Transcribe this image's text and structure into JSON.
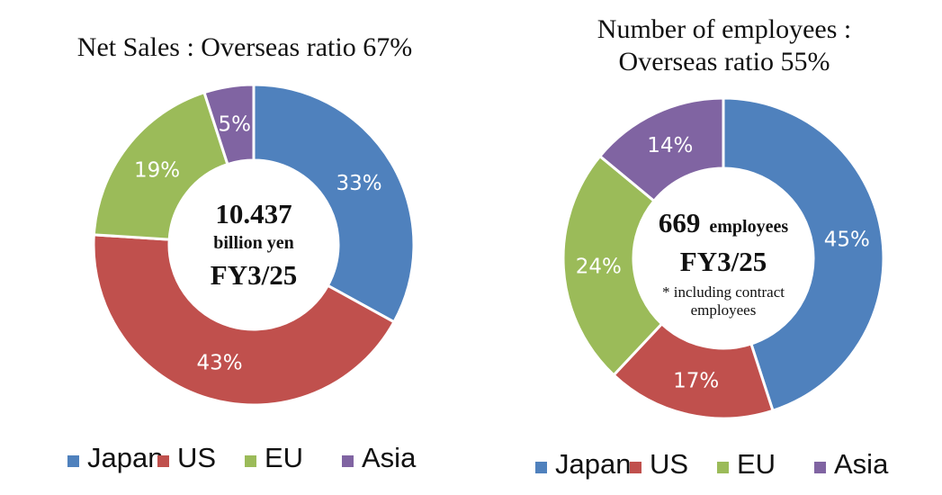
{
  "colors": {
    "Japan": "#4f81bd",
    "US": "#c0504d",
    "EU": "#9bbb59",
    "Asia": "#8064a2"
  },
  "chart_data": [
    {
      "type": "pie",
      "title": "Net Sales : Overseas ratio 67%",
      "categories": [
        "Japan",
        "US",
        "EU",
        "Asia"
      ],
      "values": [
        33,
        43,
        19,
        5
      ],
      "labels": [
        "33%",
        "43%",
        "19%",
        "5%"
      ],
      "center": {
        "value": "10.437",
        "unit": "billion yen",
        "period": "FY3/25"
      },
      "legend": [
        "Japan",
        "US",
        "EU",
        "Asia"
      ],
      "legend_position": "bottom"
    },
    {
      "type": "pie",
      "title_lines": [
        "Number of employees :",
        "Overseas ratio 55%"
      ],
      "categories": [
        "Japan",
        "US",
        "EU",
        "Asia"
      ],
      "values": [
        45,
        17,
        24,
        14
      ],
      "labels": [
        "45%",
        "17%",
        "24%",
        "14%"
      ],
      "center": {
        "value": "669",
        "unit": "employees",
        "period": "FY3/25",
        "note_lines": [
          "* including contract",
          "employees"
        ]
      },
      "legend": [
        "Japan",
        "US",
        "EU",
        "Asia"
      ],
      "legend_position": "bottom"
    }
  ]
}
